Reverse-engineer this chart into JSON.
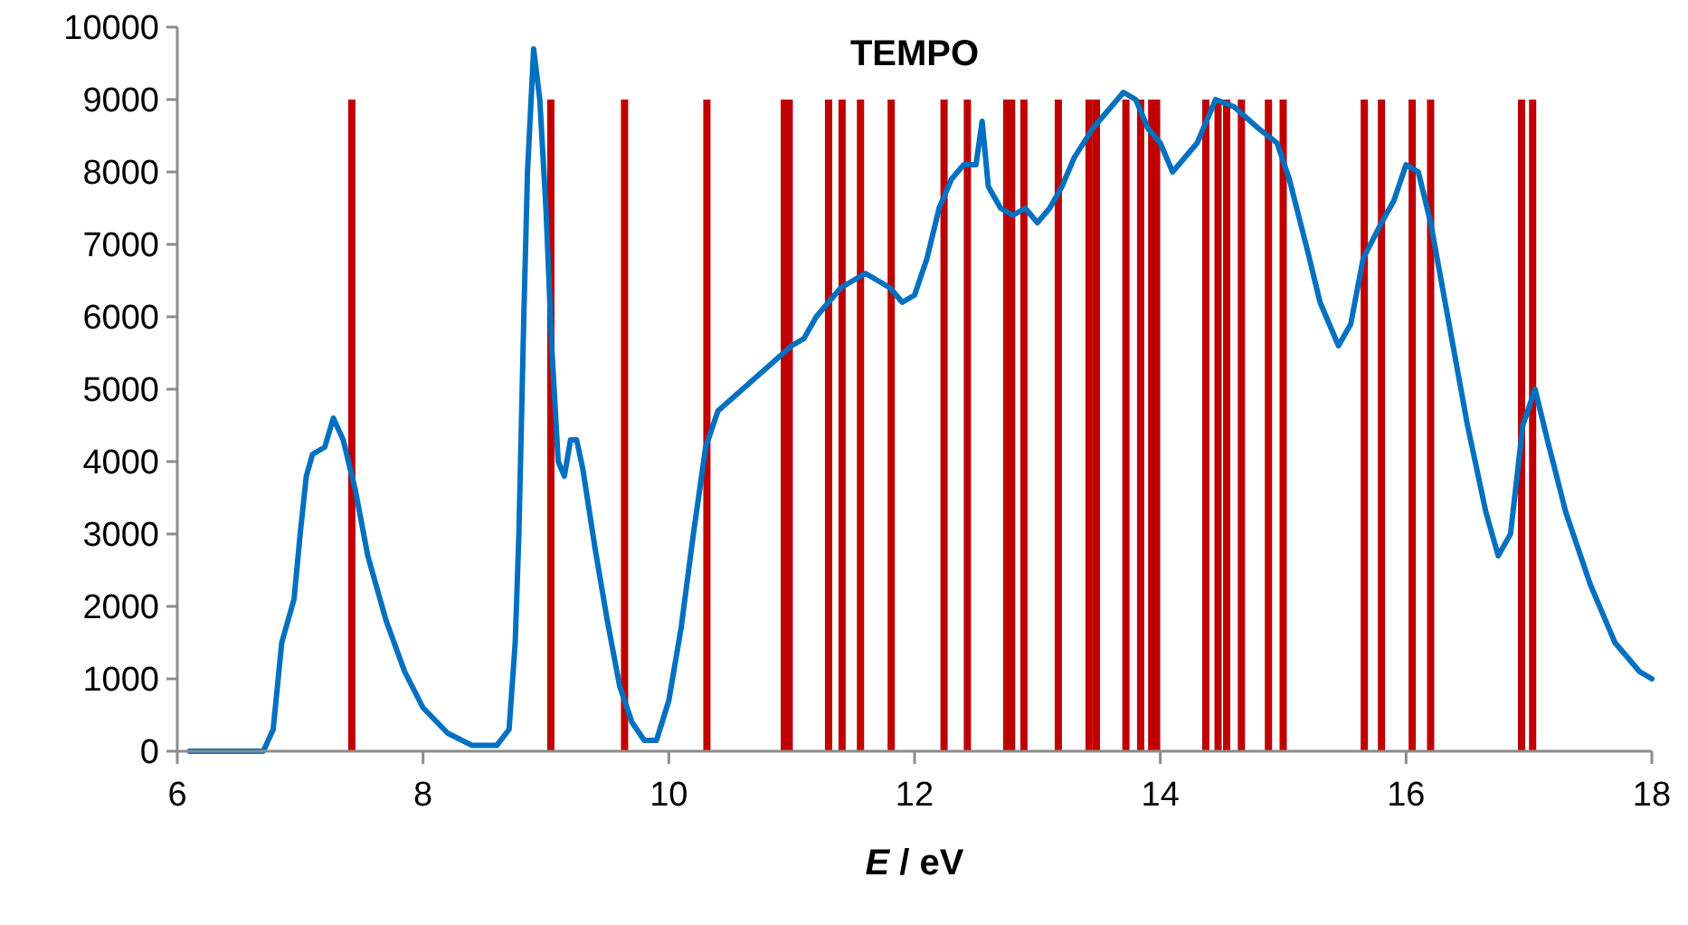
{
  "chart_data": {
    "type": "line",
    "title": "TEMPO",
    "xlabel": "E / eV",
    "xlim": [
      6,
      18
    ],
    "xticks": [
      6,
      8,
      10,
      12,
      14,
      16,
      18
    ],
    "ylim": [
      0,
      10000
    ],
    "yticks": [
      0,
      1000,
      2000,
      3000,
      4000,
      5000,
      6000,
      7000,
      8000,
      9000,
      10000
    ],
    "grid": false,
    "marker": "none",
    "series": [
      {
        "color": "#0070c0",
        "x": [
          6.1,
          6.7,
          6.78,
          6.85,
          6.95,
          7.0,
          7.05,
          7.1,
          7.2,
          7.27,
          7.35,
          7.45,
          7.55,
          7.7,
          7.85,
          8.0,
          8.2,
          8.4,
          8.6,
          8.7,
          8.75,
          8.78,
          8.82,
          8.85,
          8.9,
          8.95,
          9.0,
          9.05,
          9.1,
          9.15,
          9.2,
          9.25,
          9.3,
          9.4,
          9.5,
          9.6,
          9.7,
          9.8,
          9.9,
          10.0,
          10.1,
          10.2,
          10.3,
          10.4,
          10.6,
          10.8,
          11.0,
          11.1,
          11.2,
          11.4,
          11.6,
          11.8,
          11.9,
          12.0,
          12.1,
          12.2,
          12.3,
          12.4,
          12.5,
          12.55,
          12.6,
          12.7,
          12.8,
          12.9,
          13.0,
          13.1,
          13.2,
          13.3,
          13.45,
          13.6,
          13.7,
          13.8,
          13.9,
          14.0,
          14.1,
          14.2,
          14.3,
          14.45,
          14.6,
          14.8,
          14.95,
          15.05,
          15.2,
          15.3,
          15.45,
          15.55,
          15.65,
          15.8,
          15.9,
          16.0,
          16.1,
          16.2,
          16.35,
          16.5,
          16.65,
          16.75,
          16.85,
          16.95,
          17.05,
          17.15,
          17.3,
          17.5,
          17.7,
          17.9,
          18.0
        ],
        "values": [
          0,
          0,
          300,
          1500,
          2100,
          3000,
          3800,
          4100,
          4200,
          4600,
          4300,
          3600,
          2700,
          1800,
          1100,
          600,
          250,
          80,
          80,
          300,
          1500,
          3000,
          6000,
          8000,
          9700,
          9000,
          7500,
          5500,
          4000,
          3800,
          4300,
          4300,
          3900,
          2800,
          1800,
          900,
          400,
          150,
          150,
          700,
          1700,
          3000,
          4200,
          4700,
          5000,
          5300,
          5600,
          5700,
          6000,
          6400,
          6600,
          6400,
          6200,
          6300,
          6800,
          7500,
          7900,
          8100,
          8100,
          8700,
          7800,
          7500,
          7400,
          7500,
          7300,
          7500,
          7800,
          8200,
          8600,
          8900,
          9100,
          9000,
          8600,
          8400,
          8000,
          8200,
          8400,
          9000,
          8900,
          8600,
          8400,
          7900,
          6900,
          6200,
          5600,
          5900,
          6800,
          7300,
          7600,
          8100,
          8000,
          7300,
          5900,
          4500,
          3300,
          2700,
          3000,
          4500,
          5000,
          4300,
          3300,
          2300,
          1500,
          1100,
          1000
        ]
      },
      {
        "type": "bar",
        "color": "#c00000",
        "x": [
          7.42,
          9.04,
          9.64,
          10.31,
          10.94,
          10.98,
          11.3,
          11.41,
          11.56,
          11.81,
          12.24,
          12.43,
          12.75,
          12.79,
          12.89,
          13.17,
          13.42,
          13.48,
          13.72,
          13.84,
          13.93,
          13.97,
          14.37,
          14.47,
          14.54,
          14.66,
          14.88,
          15.0,
          15.66,
          15.8,
          16.05,
          16.2,
          16.94,
          17.03
        ],
        "values": [
          9000,
          9000,
          9000,
          9000,
          9000,
          9000,
          9000,
          9000,
          9000,
          9000,
          9000,
          9000,
          9000,
          9000,
          9000,
          9000,
          9000,
          9000,
          9000,
          9000,
          9000,
          9000,
          9000,
          9000,
          9000,
          9000,
          9000,
          9000,
          9000,
          9000,
          9000,
          9000,
          9000,
          9000
        ]
      }
    ]
  }
}
